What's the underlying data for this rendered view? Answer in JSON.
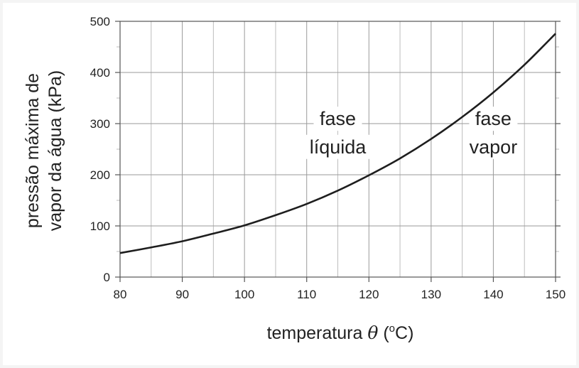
{
  "chart_data": {
    "type": "line",
    "xlabel_prefix": "temperatura",
    "xlabel_symbol": "θ",
    "xlabel_open": "(",
    "xlabel_unit_sup": "o",
    "xlabel_unit_main": "C)",
    "ylabel_line1": "pressão máxima de",
    "ylabel_line2": "vapor da água (kPa)",
    "xlim": [
      80,
      150
    ],
    "ylim": [
      0,
      500
    ],
    "x_ticks": [
      80,
      90,
      100,
      110,
      120,
      130,
      140,
      150
    ],
    "y_ticks": [
      0,
      100,
      200,
      300,
      400,
      500
    ],
    "x_minor_step": 5,
    "y_minor_step": 50,
    "grid": true,
    "series": [
      {
        "x": [
          80,
          85,
          90,
          95,
          100,
          105,
          110,
          115,
          120,
          125,
          130,
          135,
          140,
          145,
          150
        ],
        "y": [
          47,
          58,
          70,
          85,
          101,
          121,
          143,
          169,
          199,
          232,
          270,
          313,
          361,
          415,
          476
        ]
      }
    ],
    "annotations": [
      {
        "lines": [
          "fase",
          "líquida"
        ],
        "x": 115,
        "y": [
          297,
          242
        ]
      },
      {
        "lines": [
          "fase",
          "vapor"
        ],
        "x": 140,
        "y": [
          297,
          242
        ]
      }
    ]
  }
}
